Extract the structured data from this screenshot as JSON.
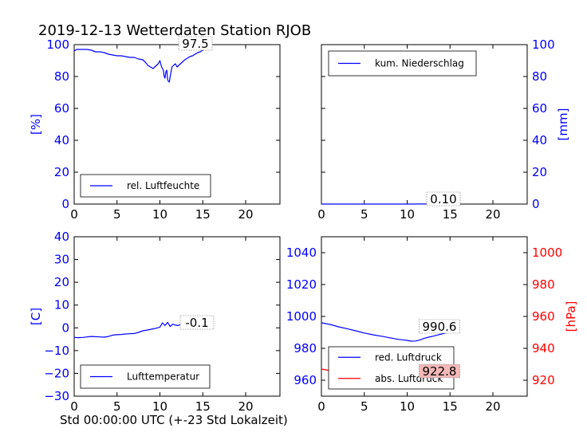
{
  "figure_title": "2019-12-13 Wetterdaten Station RJOB",
  "xlabel": "Std 00:00:00 UTC (+-23 Std Lokalzeit)",
  "colors": {
    "blue": "#0000ff",
    "red": "#ff0000",
    "annot_red_bg": "#f4b8b8"
  },
  "chart_data": [
    {
      "type": "line",
      "title": "",
      "xlabel": "",
      "ylabel": "[%]",
      "xlim": [
        0,
        24
      ],
      "ylim": [
        0,
        100
      ],
      "xticks": [
        "0",
        "5",
        "10",
        "15",
        "20"
      ],
      "yticks": [
        "0",
        "20",
        "40",
        "60",
        "80",
        "100"
      ],
      "legend": "lower-left",
      "annotation": "97.5",
      "series": [
        {
          "name": "rel. Luftfeuchte",
          "color": "#0000ff",
          "x": [
            0,
            0.3,
            0.7,
            1.5,
            2.0,
            2.5,
            3.0,
            3.5,
            4.0,
            4.5,
            5.0,
            5.5,
            6.0,
            6.5,
            7.0,
            7.5,
            8.0,
            8.3,
            8.6,
            8.9,
            9.2,
            9.5,
            9.8,
            10.0,
            10.2,
            10.4,
            10.5,
            10.6,
            10.7,
            10.8,
            10.9,
            11.0,
            11.1,
            11.2,
            11.4,
            11.6,
            11.8,
            12.0,
            12.3,
            12.6,
            12.9,
            13.2,
            13.5,
            13.8,
            14.1,
            14.4,
            14.7,
            15.0,
            15.3,
            15.6
          ],
          "y": [
            96,
            97,
            97,
            97,
            96.5,
            95.5,
            95.5,
            95,
            94,
            93.5,
            93,
            93,
            92.5,
            92,
            92,
            91,
            90.5,
            89,
            87,
            86,
            85,
            86.5,
            88,
            90,
            86,
            84,
            80,
            79,
            83,
            84,
            78,
            77,
            76.5,
            80,
            86,
            87,
            88,
            86,
            87.5,
            89,
            90.5,
            91.5,
            92.5,
            93,
            94,
            95,
            95.5,
            96.5,
            97,
            97.5
          ]
        }
      ]
    },
    {
      "type": "line",
      "title": "",
      "xlabel": "",
      "ylabel": "[mm]",
      "xlim": [
        0,
        24
      ],
      "ylim": [
        0,
        100
      ],
      "xticks": [
        "0",
        "5",
        "10",
        "15",
        "20"
      ],
      "yticks": [
        "0",
        "20",
        "40",
        "60",
        "80",
        "100"
      ],
      "legend": "upper-left",
      "annotation": "0.10",
      "series": [
        {
          "name": "kum. Niederschlag",
          "color": "#0000ff",
          "x": [
            0,
            5,
            10,
            12,
            14,
            15.6
          ],
          "y": [
            0,
            0,
            0,
            0.05,
            0.08,
            0.1
          ]
        }
      ]
    },
    {
      "type": "line",
      "title": "",
      "xlabel": "",
      "ylabel": "[C]",
      "xlim": [
        0,
        24
      ],
      "ylim": [
        -30,
        40
      ],
      "xticks": [
        "0",
        "5",
        "10",
        "15",
        "20"
      ],
      "yticks": [
        "−30",
        "−20",
        "−10",
        "0",
        "10",
        "20",
        "30",
        "40"
      ],
      "legend": "lower-left",
      "annotation": "-0.1",
      "series": [
        {
          "name": "Lufttemperatur",
          "color": "#0000ff",
          "x": [
            0,
            0.5,
            1.0,
            1.5,
            2.0,
            2.5,
            3.0,
            3.5,
            4.0,
            4.5,
            5.0,
            5.5,
            6.0,
            6.5,
            7.0,
            7.5,
            8.0,
            8.5,
            9.0,
            9.5,
            10.0,
            10.3,
            10.6,
            10.9,
            11.2,
            11.5,
            11.8,
            12.1,
            12.4,
            12.7,
            13.0,
            13.3,
            13.6,
            14.0,
            14.4,
            14.8,
            15.2,
            15.6
          ],
          "y": [
            -4.2,
            -4.3,
            -4.2,
            -4.0,
            -3.8,
            -3.9,
            -4.0,
            -4.1,
            -3.8,
            -3.2,
            -3.0,
            -2.9,
            -2.7,
            -2.6,
            -2.5,
            -2.0,
            -1.3,
            -1.0,
            -0.6,
            -0.2,
            0.3,
            2.2,
            1.0,
            2.4,
            0.6,
            1.6,
            1.2,
            1.0,
            1.5,
            0.8,
            1.2,
            1.1,
            1.8,
            1.0,
            1.2,
            0.4,
            0.1,
            -0.1
          ]
        }
      ]
    },
    {
      "type": "line",
      "title": "",
      "xlabel": "",
      "ylabel": "",
      "ylabel_right": "[hPa]",
      "xlim": [
        0,
        24
      ],
      "ylim": [
        950,
        1050
      ],
      "ylim_right": [
        910,
        1010
      ],
      "xticks": [
        "0",
        "5",
        "10",
        "15",
        "20"
      ],
      "yticks": [
        "960",
        "980",
        "1000",
        "1020",
        "1040"
      ],
      "yticks_right": [
        "920",
        "940",
        "960",
        "980",
        "1000"
      ],
      "legend": "lower-left",
      "annotations": [
        "990.6",
        "922.8"
      ],
      "series": [
        {
          "name": "red. Luftdruck",
          "color": "#0000ff",
          "axis": "left",
          "x": [
            0,
            1,
            2,
            3,
            4,
            5,
            6,
            7,
            8,
            9,
            10,
            10.5,
            11,
            11.5,
            12,
            12.5,
            13,
            13.5,
            14,
            14.5,
            15,
            15.6
          ],
          "y": [
            996.0,
            995.0,
            993.5,
            992.3,
            991.0,
            989.6,
            988.5,
            987.6,
            986.6,
            985.6,
            985.0,
            984.5,
            984.6,
            985.3,
            986.3,
            987.0,
            987.6,
            988.3,
            989.0,
            989.6,
            990.0,
            990.6
          ]
        },
        {
          "name": "abs. Luftdruck",
          "color": "#ff0000",
          "axis": "right",
          "x": [
            0,
            1,
            2,
            3,
            4,
            5,
            6,
            7,
            8,
            9,
            10,
            10.5,
            11,
            11.5,
            12,
            12.5,
            13,
            13.5,
            14,
            14.5,
            15,
            15.6
          ],
          "y": [
            927.0,
            926.0,
            924.8,
            923.7,
            922.7,
            921.7,
            920.8,
            919.9,
            919.0,
            918.2,
            917.6,
            917.4,
            917.5,
            918.2,
            919.0,
            919.7,
            920.3,
            920.9,
            921.5,
            922.0,
            922.4,
            922.8
          ]
        }
      ]
    }
  ]
}
